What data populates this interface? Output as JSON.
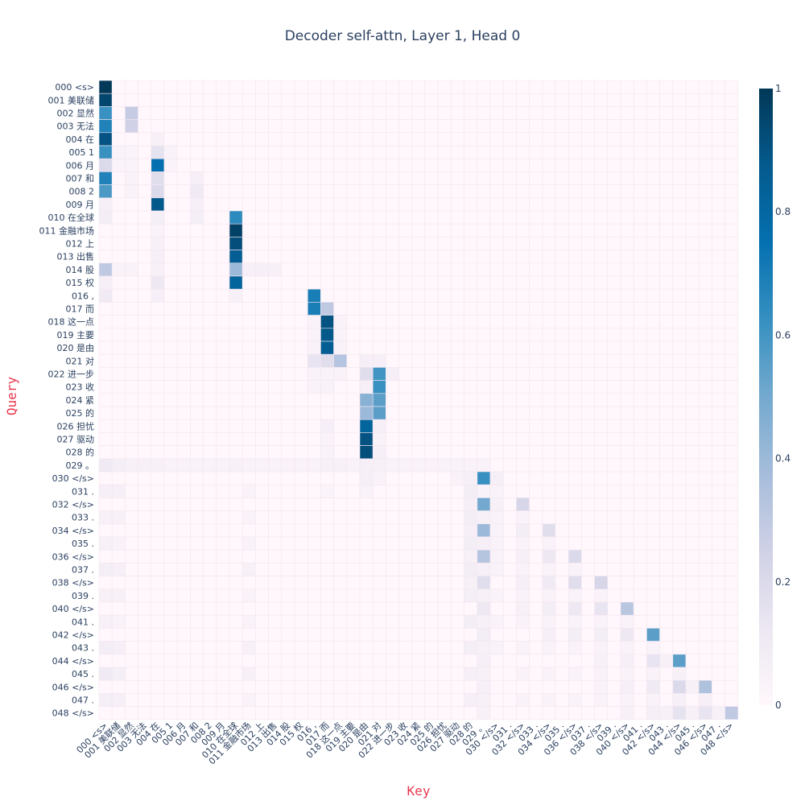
{
  "chart_data": {
    "type": "heatmap",
    "title": "Decoder self-attn, Layer 1, Head 0",
    "xlabel": "Key",
    "ylabel": "Query",
    "axis_title_color": "#e8384f",
    "tick_labels": [
      "000 <s>",
      "001 美联储",
      "002 显然",
      "003 无法",
      "004 在",
      "005 1",
      "006 月",
      "007 和",
      "008 2",
      "009 月",
      "010 在全球",
      "011 金融市场",
      "012 上",
      "013 出售",
      "014 股",
      "015 权",
      "016 ,",
      "017 而",
      "018 这一点",
      "019 主要",
      "020 是由",
      "021 对",
      "022 进一步",
      "023 收",
      "024 紧",
      "025 的",
      "026 担忧",
      "027 驱动",
      "028 的",
      "029 。",
      "030 </s>",
      "031 .",
      "032 </s>",
      "033 .",
      "034 </s>",
      "035 .",
      "036 </s>",
      "037 .",
      "038 </s>",
      "039 .",
      "040 </s>",
      "041 .",
      "042 </s>",
      "043 .",
      "044 </s>",
      "045 .",
      "046 </s>",
      "047 .",
      "048 </s>"
    ],
    "colorscale": [
      [
        0.0,
        "#fff7fb"
      ],
      [
        0.125,
        "#ece7f2"
      ],
      [
        0.25,
        "#d0d1e6"
      ],
      [
        0.375,
        "#a6bddb"
      ],
      [
        0.5,
        "#74a9cf"
      ],
      [
        0.625,
        "#3690c0"
      ],
      [
        0.75,
        "#0570b0"
      ],
      [
        0.875,
        "#045a8d"
      ],
      [
        1.0,
        "#023858"
      ]
    ],
    "zrange": [
      0,
      1
    ],
    "colorbar_ticks": [
      {
        "value": 0,
        "label": "0"
      },
      {
        "value": 0.2,
        "label": "0.2"
      },
      {
        "value": 0.4,
        "label": "0.4"
      },
      {
        "value": 0.6,
        "label": "0.6"
      },
      {
        "value": 0.8,
        "label": "0.8"
      },
      {
        "value": 1,
        "label": "1"
      }
    ],
    "cells": [
      [
        0,
        0,
        1.0
      ],
      [
        1,
        0,
        0.95
      ],
      [
        2,
        0,
        0.62
      ],
      [
        2,
        2,
        0.28
      ],
      [
        3,
        0,
        0.68
      ],
      [
        3,
        2,
        0.25
      ],
      [
        4,
        0,
        0.9
      ],
      [
        4,
        4,
        0.05
      ],
      [
        5,
        0,
        0.62
      ],
      [
        5,
        1,
        0.04
      ],
      [
        5,
        2,
        0.03
      ],
      [
        5,
        4,
        0.15
      ],
      [
        5,
        5,
        0.04
      ],
      [
        6,
        0,
        0.2
      ],
      [
        6,
        1,
        0.03
      ],
      [
        6,
        2,
        0.03
      ],
      [
        6,
        4,
        0.75
      ],
      [
        6,
        5,
        0.03
      ],
      [
        7,
        0,
        0.68
      ],
      [
        7,
        2,
        0.04
      ],
      [
        7,
        4,
        0.18
      ],
      [
        7,
        7,
        0.06
      ],
      [
        8,
        0,
        0.58
      ],
      [
        8,
        2,
        0.04
      ],
      [
        8,
        4,
        0.2
      ],
      [
        8,
        7,
        0.1
      ],
      [
        9,
        0,
        0.06
      ],
      [
        9,
        4,
        0.88
      ],
      [
        9,
        7,
        0.06
      ],
      [
        10,
        0,
        0.08
      ],
      [
        10,
        4,
        0.07
      ],
      [
        10,
        7,
        0.07
      ],
      [
        10,
        10,
        0.65
      ],
      [
        11,
        10,
        0.97
      ],
      [
        11,
        4,
        0.04
      ],
      [
        12,
        10,
        0.92
      ],
      [
        12,
        4,
        0.05
      ],
      [
        13,
        10,
        0.85
      ],
      [
        13,
        4,
        0.06
      ],
      [
        14,
        0,
        0.3
      ],
      [
        14,
        1,
        0.04
      ],
      [
        14,
        2,
        0.04
      ],
      [
        14,
        4,
        0.05
      ],
      [
        14,
        10,
        0.4
      ],
      [
        14,
        11,
        0.06
      ],
      [
        14,
        12,
        0.06
      ],
      [
        14,
        13,
        0.05
      ],
      [
        15,
        0,
        0.06
      ],
      [
        15,
        4,
        0.12
      ],
      [
        15,
        10,
        0.82
      ],
      [
        16,
        0,
        0.1
      ],
      [
        16,
        4,
        0.06
      ],
      [
        16,
        10,
        0.05
      ],
      [
        16,
        16,
        0.7
      ],
      [
        17,
        16,
        0.7
      ],
      [
        17,
        17,
        0.3
      ],
      [
        18,
        16,
        0.04
      ],
      [
        18,
        17,
        0.9
      ],
      [
        18,
        18,
        0.04
      ],
      [
        19,
        16,
        0.04
      ],
      [
        19,
        17,
        0.88
      ],
      [
        19,
        18,
        0.04
      ],
      [
        20,
        16,
        0.04
      ],
      [
        20,
        17,
        0.85
      ],
      [
        20,
        18,
        0.04
      ],
      [
        21,
        16,
        0.14
      ],
      [
        21,
        17,
        0.18
      ],
      [
        21,
        18,
        0.33
      ],
      [
        21,
        20,
        0.06
      ],
      [
        21,
        21,
        0.06
      ],
      [
        22,
        16,
        0.04
      ],
      [
        22,
        17,
        0.04
      ],
      [
        22,
        18,
        0.04
      ],
      [
        22,
        20,
        0.18
      ],
      [
        22,
        21,
        0.6
      ],
      [
        22,
        22,
        0.06
      ],
      [
        23,
        16,
        0.04
      ],
      [
        23,
        17,
        0.04
      ],
      [
        23,
        20,
        0.06
      ],
      [
        23,
        21,
        0.62
      ],
      [
        24,
        20,
        0.45
      ],
      [
        24,
        21,
        0.55
      ],
      [
        25,
        20,
        0.4
      ],
      [
        25,
        21,
        0.55
      ],
      [
        26,
        17,
        0.06
      ],
      [
        26,
        20,
        0.82
      ],
      [
        26,
        21,
        0.06
      ],
      [
        27,
        17,
        0.04
      ],
      [
        27,
        20,
        0.9
      ],
      [
        27,
        21,
        0.04
      ],
      [
        28,
        17,
        0.04
      ],
      [
        28,
        20,
        0.92
      ],
      [
        28,
        21,
        0.06
      ],
      [
        29,
        0,
        0.1
      ],
      [
        29,
        1,
        0.07
      ],
      [
        29,
        2,
        0.05
      ],
      [
        29,
        3,
        0.05
      ],
      [
        29,
        4,
        0.05
      ],
      [
        29,
        5,
        0.04
      ],
      [
        29,
        6,
        0.04
      ],
      [
        29,
        7,
        0.04
      ],
      [
        29,
        8,
        0.04
      ],
      [
        29,
        9,
        0.04
      ],
      [
        29,
        10,
        0.05
      ],
      [
        29,
        11,
        0.04
      ],
      [
        29,
        12,
        0.04
      ],
      [
        29,
        13,
        0.04
      ],
      [
        29,
        14,
        0.04
      ],
      [
        29,
        15,
        0.04
      ],
      [
        29,
        16,
        0.04
      ],
      [
        29,
        17,
        0.05
      ],
      [
        29,
        18,
        0.05
      ],
      [
        29,
        19,
        0.04
      ],
      [
        29,
        20,
        0.06
      ],
      [
        29,
        21,
        0.05
      ],
      [
        29,
        22,
        0.04
      ],
      [
        29,
        23,
        0.04
      ],
      [
        29,
        24,
        0.04
      ],
      [
        29,
        25,
        0.04
      ],
      [
        29,
        26,
        0.04
      ],
      [
        29,
        27,
        0.04
      ],
      [
        29,
        28,
        0.04
      ],
      [
        29,
        29,
        0.04
      ],
      [
        30,
        20,
        0.06
      ],
      [
        30,
        21,
        0.04
      ],
      [
        30,
        27,
        0.04
      ],
      [
        30,
        28,
        0.06
      ],
      [
        30,
        29,
        0.62
      ],
      [
        30,
        30,
        0.06
      ],
      [
        31,
        0,
        0.06
      ],
      [
        31,
        1,
        0.06
      ],
      [
        31,
        11,
        0.04
      ],
      [
        31,
        17,
        0.03
      ],
      [
        31,
        20,
        0.04
      ],
      [
        31,
        28,
        0.08
      ],
      [
        31,
        29,
        0.04
      ],
      [
        31,
        30,
        0.04
      ],
      [
        32,
        28,
        0.06
      ],
      [
        32,
        29,
        0.5
      ],
      [
        32,
        30,
        0.05
      ],
      [
        32,
        32,
        0.22
      ],
      [
        33,
        0,
        0.05
      ],
      [
        33,
        1,
        0.05
      ],
      [
        33,
        11,
        0.04
      ],
      [
        33,
        28,
        0.08
      ],
      [
        33,
        29,
        0.05
      ],
      [
        33,
        30,
        0.04
      ],
      [
        33,
        32,
        0.04
      ],
      [
        34,
        28,
        0.06
      ],
      [
        34,
        29,
        0.4
      ],
      [
        34,
        30,
        0.04
      ],
      [
        34,
        32,
        0.08
      ],
      [
        34,
        34,
        0.18
      ],
      [
        35,
        0,
        0.05
      ],
      [
        35,
        1,
        0.04
      ],
      [
        35,
        11,
        0.04
      ],
      [
        35,
        28,
        0.08
      ],
      [
        35,
        29,
        0.06
      ],
      [
        35,
        30,
        0.04
      ],
      [
        35,
        32,
        0.04
      ],
      [
        35,
        34,
        0.04
      ],
      [
        36,
        28,
        0.05
      ],
      [
        36,
        29,
        0.33
      ],
      [
        36,
        30,
        0.04
      ],
      [
        36,
        32,
        0.06
      ],
      [
        36,
        34,
        0.12
      ],
      [
        36,
        36,
        0.2
      ],
      [
        37,
        0,
        0.07
      ],
      [
        37,
        1,
        0.06
      ],
      [
        37,
        11,
        0.05
      ],
      [
        37,
        28,
        0.08
      ],
      [
        37,
        29,
        0.06
      ],
      [
        37,
        30,
        0.04
      ],
      [
        37,
        32,
        0.04
      ],
      [
        37,
        34,
        0.04
      ],
      [
        37,
        36,
        0.04
      ],
      [
        38,
        28,
        0.05
      ],
      [
        38,
        29,
        0.18
      ],
      [
        38,
        32,
        0.06
      ],
      [
        38,
        34,
        0.1
      ],
      [
        38,
        36,
        0.18
      ],
      [
        38,
        38,
        0.22
      ],
      [
        39,
        0,
        0.05
      ],
      [
        39,
        1,
        0.05
      ],
      [
        39,
        11,
        0.04
      ],
      [
        39,
        28,
        0.07
      ],
      [
        39,
        29,
        0.05
      ],
      [
        39,
        30,
        0.04
      ],
      [
        39,
        32,
        0.04
      ],
      [
        39,
        34,
        0.04
      ],
      [
        39,
        36,
        0.04
      ],
      [
        39,
        38,
        0.04
      ],
      [
        40,
        29,
        0.12
      ],
      [
        40,
        32,
        0.05
      ],
      [
        40,
        34,
        0.08
      ],
      [
        40,
        36,
        0.12
      ],
      [
        40,
        38,
        0.14
      ],
      [
        40,
        40,
        0.32
      ],
      [
        41,
        0,
        0.05
      ],
      [
        41,
        1,
        0.04
      ],
      [
        41,
        11,
        0.04
      ],
      [
        41,
        28,
        0.08
      ],
      [
        41,
        29,
        0.05
      ],
      [
        41,
        30,
        0.04
      ],
      [
        41,
        32,
        0.04
      ],
      [
        41,
        34,
        0.04
      ],
      [
        41,
        36,
        0.04
      ],
      [
        41,
        38,
        0.04
      ],
      [
        41,
        40,
        0.04
      ],
      [
        42,
        29,
        0.08
      ],
      [
        42,
        34,
        0.06
      ],
      [
        42,
        36,
        0.08
      ],
      [
        42,
        38,
        0.08
      ],
      [
        42,
        40,
        0.12
      ],
      [
        42,
        42,
        0.55
      ],
      [
        43,
        0,
        0.08
      ],
      [
        43,
        1,
        0.06
      ],
      [
        43,
        11,
        0.05
      ],
      [
        43,
        28,
        0.07
      ],
      [
        43,
        29,
        0.05
      ],
      [
        43,
        30,
        0.04
      ],
      [
        43,
        32,
        0.04
      ],
      [
        43,
        34,
        0.04
      ],
      [
        43,
        36,
        0.04
      ],
      [
        43,
        38,
        0.04
      ],
      [
        43,
        40,
        0.04
      ],
      [
        43,
        42,
        0.04
      ],
      [
        44,
        29,
        0.06
      ],
      [
        44,
        38,
        0.05
      ],
      [
        44,
        40,
        0.06
      ],
      [
        44,
        42,
        0.14
      ],
      [
        44,
        43,
        0.05
      ],
      [
        44,
        44,
        0.55
      ],
      [
        45,
        0,
        0.1
      ],
      [
        45,
        1,
        0.07
      ],
      [
        45,
        11,
        0.05
      ],
      [
        45,
        28,
        0.06
      ],
      [
        45,
        29,
        0.05
      ],
      [
        45,
        32,
        0.04
      ],
      [
        45,
        34,
        0.04
      ],
      [
        45,
        36,
        0.04
      ],
      [
        45,
        38,
        0.04
      ],
      [
        45,
        40,
        0.04
      ],
      [
        45,
        42,
        0.04
      ],
      [
        45,
        44,
        0.05
      ],
      [
        46,
        29,
        0.06
      ],
      [
        46,
        38,
        0.04
      ],
      [
        46,
        40,
        0.06
      ],
      [
        46,
        42,
        0.1
      ],
      [
        46,
        44,
        0.2
      ],
      [
        46,
        45,
        0.05
      ],
      [
        46,
        46,
        0.35
      ],
      [
        47,
        0,
        0.07
      ],
      [
        47,
        1,
        0.06
      ],
      [
        47,
        11,
        0.04
      ],
      [
        47,
        28,
        0.06
      ],
      [
        47,
        29,
        0.05
      ],
      [
        47,
        32,
        0.04
      ],
      [
        47,
        34,
        0.04
      ],
      [
        47,
        36,
        0.04
      ],
      [
        47,
        38,
        0.04
      ],
      [
        47,
        40,
        0.04
      ],
      [
        47,
        42,
        0.04
      ],
      [
        47,
        44,
        0.06
      ],
      [
        47,
        46,
        0.06
      ],
      [
        48,
        29,
        0.05
      ],
      [
        48,
        40,
        0.05
      ],
      [
        48,
        42,
        0.06
      ],
      [
        48,
        43,
        0.05
      ],
      [
        48,
        44,
        0.15
      ],
      [
        48,
        45,
        0.05
      ],
      [
        48,
        46,
        0.14
      ],
      [
        48,
        47,
        0.05
      ],
      [
        48,
        48,
        0.3
      ]
    ]
  }
}
